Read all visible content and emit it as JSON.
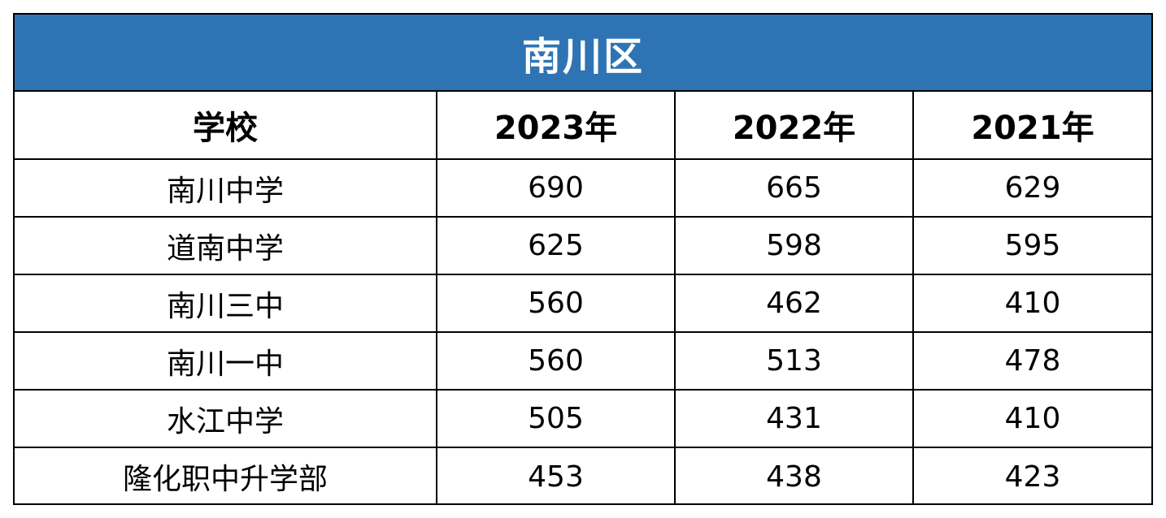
{
  "title": "南川区",
  "columns": [
    "学校",
    "2023年",
    "2022年",
    "2021年"
  ],
  "rows": [
    {
      "school": "南川中学",
      "y2023": "690",
      "y2022": "665",
      "y2021": "629"
    },
    {
      "school": "道南中学",
      "y2023": "625",
      "y2022": "598",
      "y2021": "595"
    },
    {
      "school": "南川三中",
      "y2023": "560",
      "y2022": "462",
      "y2021": "410"
    },
    {
      "school": "南川一中",
      "y2023": "560",
      "y2022": "513",
      "y2021": "478"
    },
    {
      "school": "水江中学",
      "y2023": "505",
      "y2022": "431",
      "y2021": "410"
    },
    {
      "school": "隆化职中升学部",
      "y2023": "453",
      "y2022": "438",
      "y2021": "423"
    }
  ],
  "colors": {
    "header_bg": "#2e74b5",
    "header_text": "#ffffff",
    "border": "#000000"
  }
}
